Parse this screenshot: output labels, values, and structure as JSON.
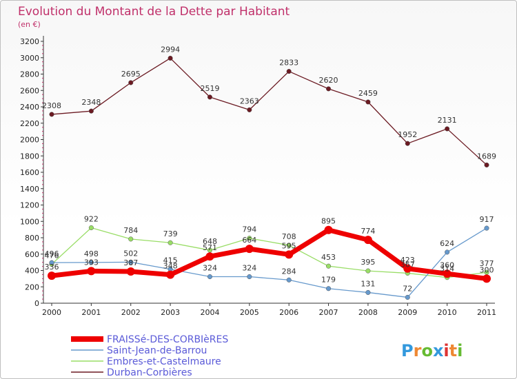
{
  "chart_data": {
    "type": "line",
    "title": "Evolution du Montant de la Dette par Habitant",
    "subtitle": "(en €)",
    "xlabel": "",
    "ylabel": "",
    "ylim": [
      0,
      3200
    ],
    "yticks": [
      0,
      200,
      400,
      600,
      800,
      1000,
      1200,
      1400,
      1600,
      1800,
      2000,
      2200,
      2400,
      2600,
      2800,
      3000,
      3200
    ],
    "x": [
      "2000",
      "2001",
      "2002",
      "2003",
      "2004",
      "2005",
      "2006",
      "2007",
      "2008",
      "2009",
      "2010",
      "2011"
    ],
    "grid": false,
    "legend_position": "bottom-left",
    "series": [
      {
        "name": "Durban-Corbières",
        "color": "#6b1a22",
        "values": [
          2308,
          2348,
          2695,
          2994,
          2519,
          2363,
          2833,
          2620,
          2459,
          1952,
          2131,
          1689
        ]
      },
      {
        "name": "Embres-et-Castelmaure",
        "color": "#99dd66",
        "values": [
          476,
          922,
          784,
          739,
          648,
          794,
          708,
          453,
          395,
          367,
          314,
          377
        ]
      },
      {
        "name": "Saint-Jean-de-Barrou",
        "color": "#6699cc",
        "values": [
          496,
          498,
          502,
          415,
          324,
          324,
          284,
          179,
          131,
          72,
          624,
          917
        ]
      },
      {
        "name": "FRAISSé-DES-CORBIèRES",
        "color": "#ee0000",
        "values": [
          336,
          393,
          387,
          348,
          571,
          664,
          595,
          895,
          774,
          423,
          360,
          300
        ]
      }
    ],
    "legend": [
      "FRAISSé-DES-CORBIèRES",
      "Saint-Jean-de-Barrou",
      "Embres-et-Castelmaure",
      "Durban-Corbières"
    ]
  },
  "logo": {
    "text": "Proxiti",
    "icon": "proxiti-logo"
  }
}
